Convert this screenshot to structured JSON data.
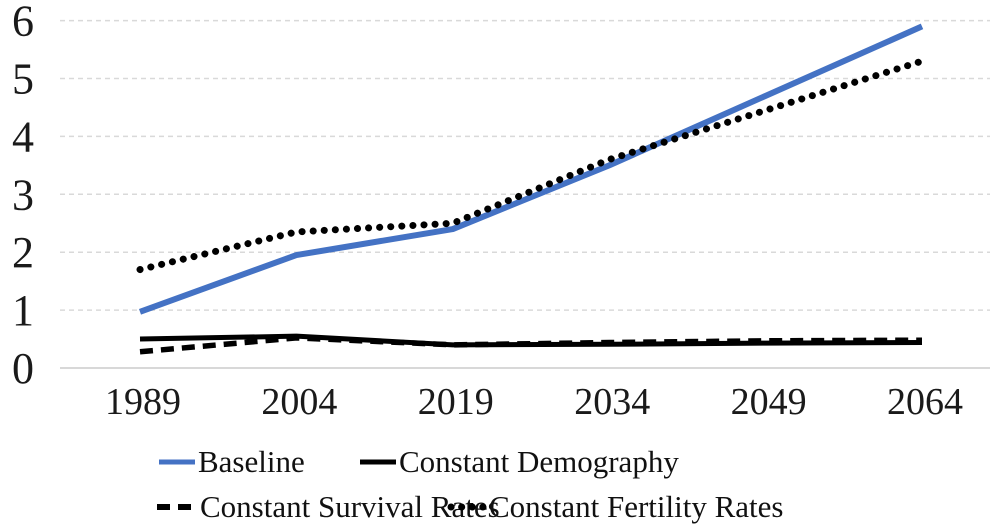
{
  "chart_data": {
    "type": "line",
    "title": "",
    "xlabel": "",
    "ylabel": "",
    "categories": [
      "1989",
      "2004",
      "2019",
      "2034",
      "2049",
      "2064"
    ],
    "series": [
      {
        "name": "Baseline",
        "color": "#4472C4",
        "style": "solid",
        "values": [
          0.97,
          1.95,
          2.4,
          3.5,
          4.7,
          5.9
        ]
      },
      {
        "name": "Constant Demography",
        "color": "#000000",
        "style": "solid",
        "values": [
          0.5,
          0.55,
          0.4,
          0.41,
          0.43,
          0.44
        ]
      },
      {
        "name": "Constant Survival Rates",
        "color": "#000000",
        "style": "dashed",
        "values": [
          0.28,
          0.52,
          0.4,
          0.44,
          0.47,
          0.48
        ]
      },
      {
        "name": "Constant Fertility Rates",
        "color": "#000000",
        "style": "dotted",
        "values": [
          1.7,
          2.35,
          2.5,
          3.6,
          4.45,
          5.3
        ]
      }
    ],
    "y_ticks": [
      "0",
      "1",
      "2",
      "3",
      "4",
      "5",
      "6"
    ],
    "ylim": [
      0,
      6
    ],
    "grid": true,
    "gridline_style": "dashed",
    "legend_position": "bottom"
  },
  "colors": {
    "background": "#ffffff",
    "gridline": "#d9d9d9",
    "axis_line": "#cccccc",
    "text": "#1a1a1a",
    "baseline_blue": "#4472C4",
    "series_black": "#000000"
  }
}
